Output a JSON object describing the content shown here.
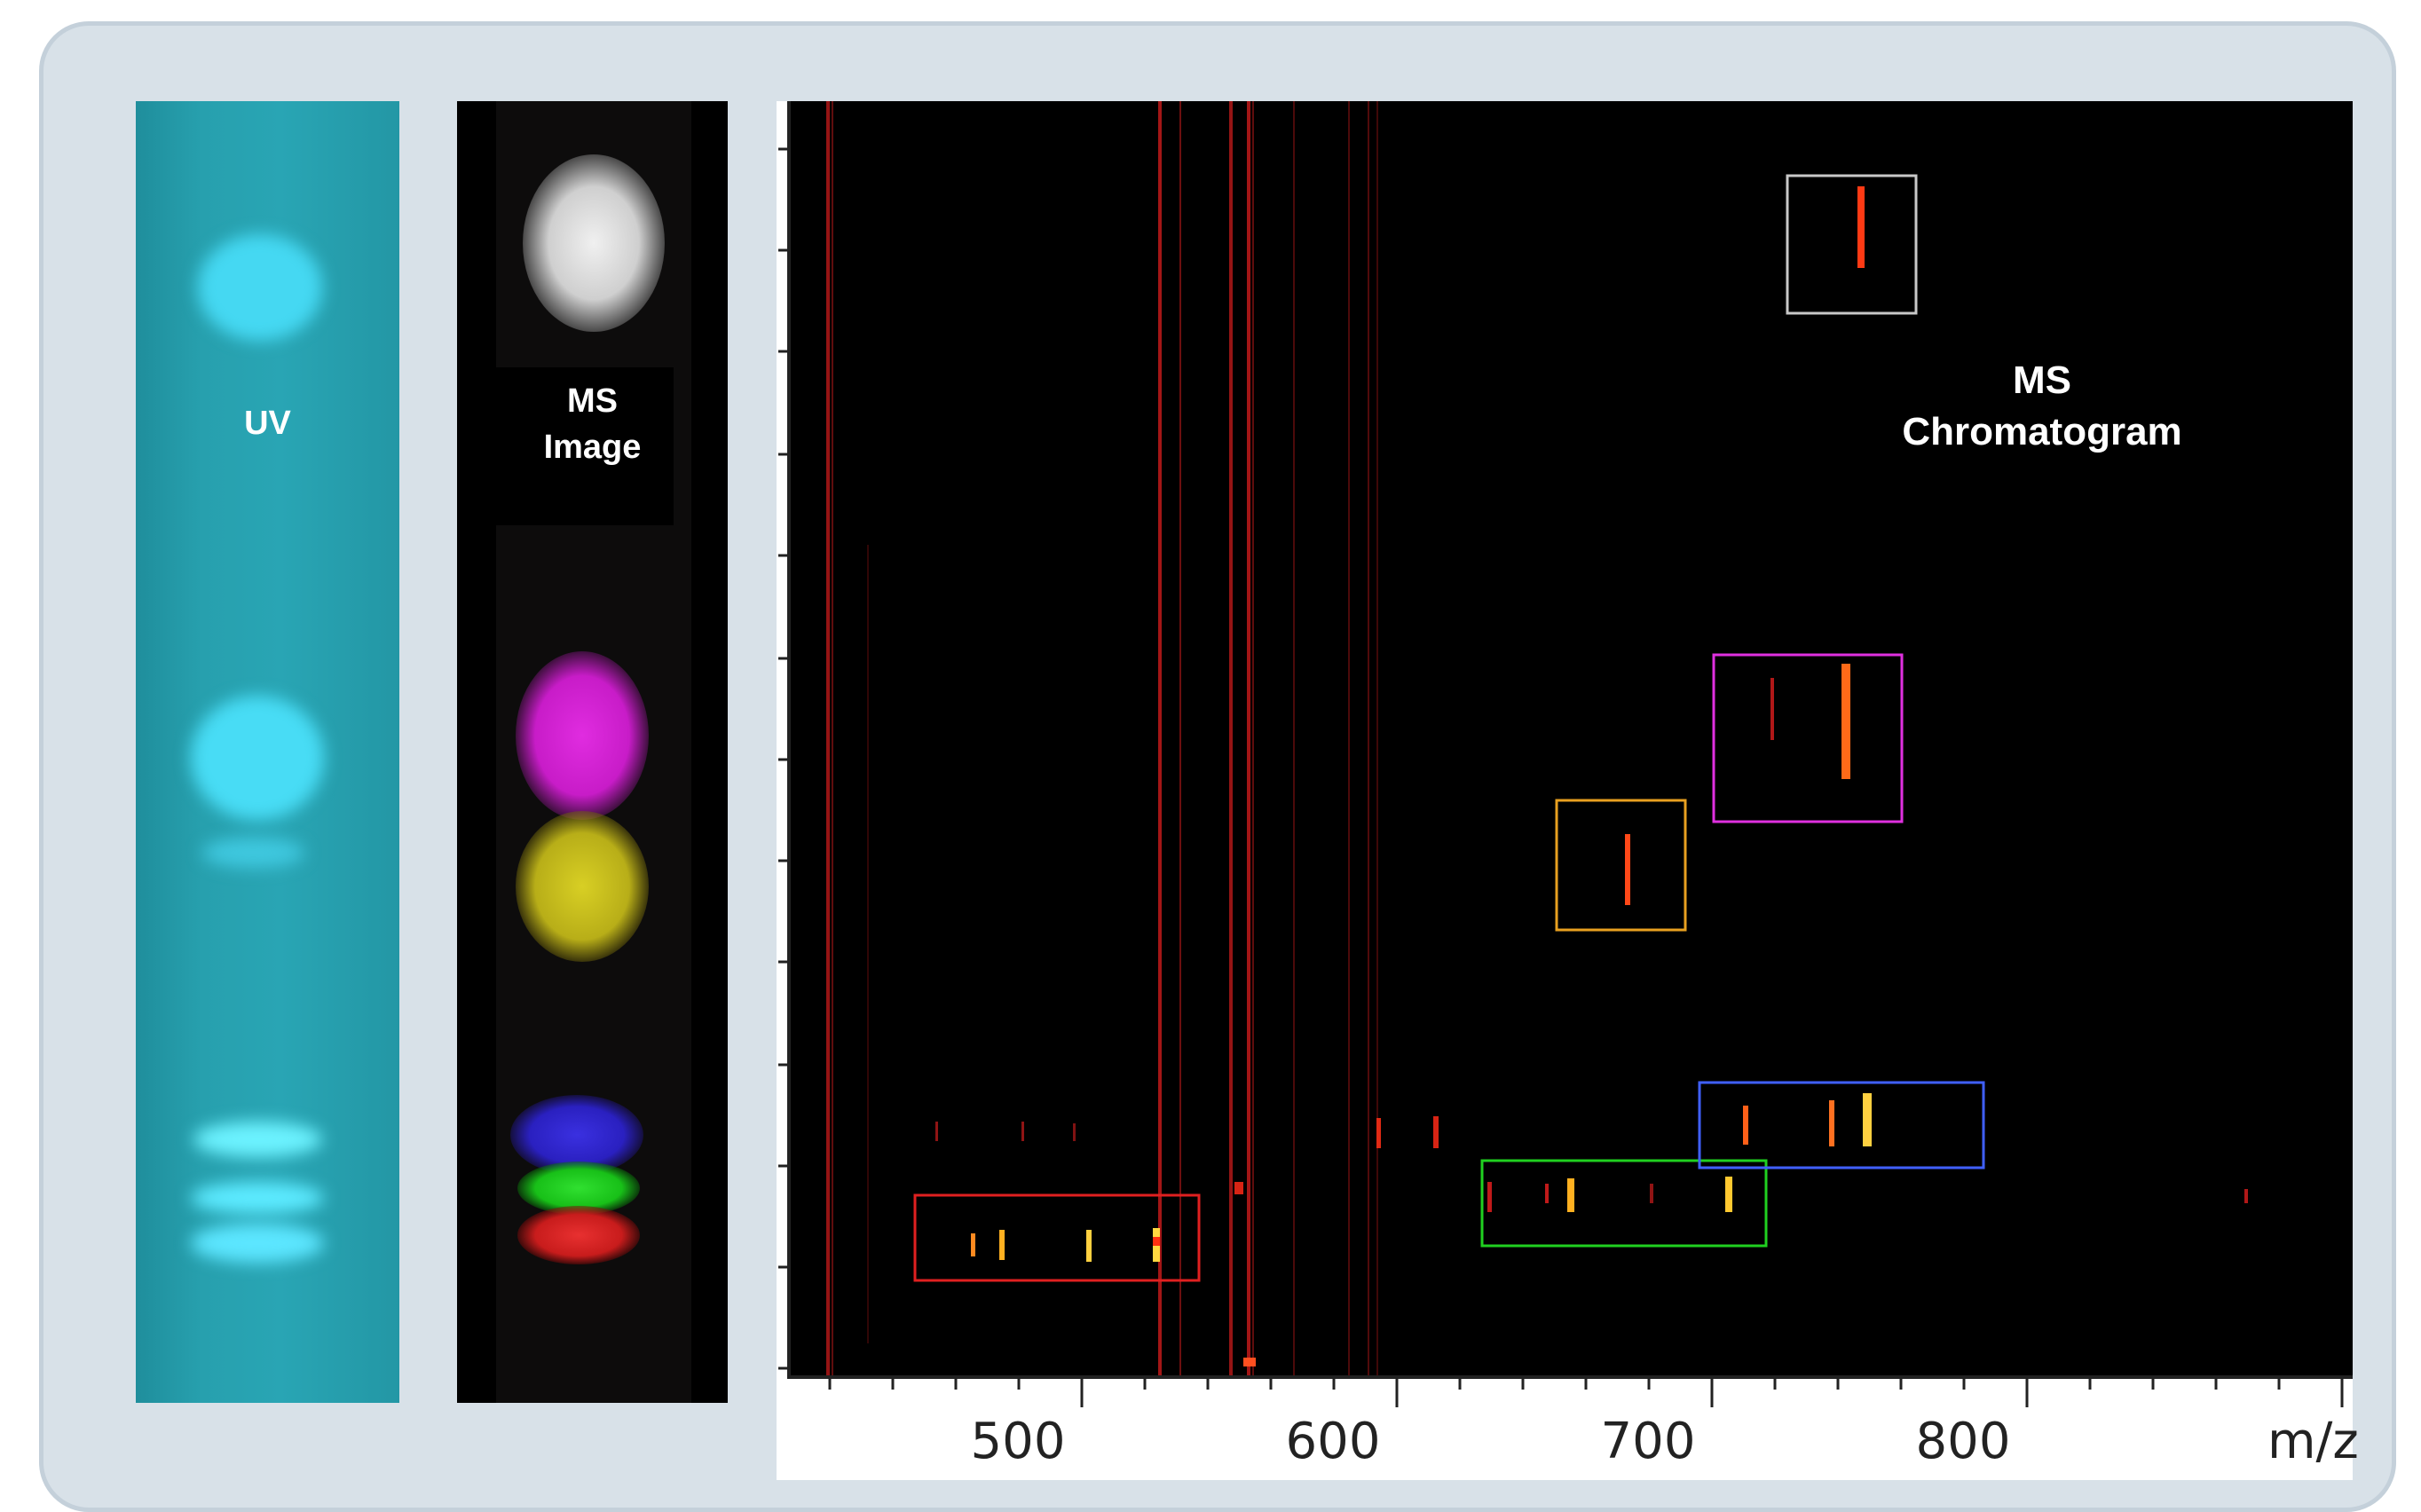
{
  "labels": {
    "uv": "UV",
    "ms_image_line1": "MS",
    "ms_image_line2": "Image",
    "chromatogram_line1": "MS",
    "chromatogram_line2": "Chromatogram"
  },
  "axis": {
    "x_ticks": [
      "500",
      "600",
      "700",
      "800"
    ],
    "unit_label": "m/z"
  },
  "colors": {
    "frame": "#d8e1e8",
    "uv_plate": "#27a0ae",
    "uv_spot": "#4fe6ff",
    "ms_white": "#e6e6e6",
    "ms_magenta": "#d21fd2",
    "ms_yellow": "#cbc21c",
    "ms_blue": "#2a20c8",
    "ms_green": "#1ec81e",
    "ms_red": "#d21c1c",
    "box_gray": "#c8c8c8",
    "box_magenta": "#e030e0",
    "box_orange": "#e8a020",
    "box_blue": "#4060ff",
    "box_green": "#20d020",
    "box_red": "#e02020"
  },
  "highlight_boxes": [
    {
      "name": "gray-box",
      "color": "#c8c8c8"
    },
    {
      "name": "magenta-box",
      "color": "#e030e0"
    },
    {
      "name": "orange-box",
      "color": "#e8a020"
    },
    {
      "name": "blue-box",
      "color": "#4060ff"
    },
    {
      "name": "green-box",
      "color": "#20d020"
    },
    {
      "name": "red-box",
      "color": "#e02020"
    }
  ]
}
